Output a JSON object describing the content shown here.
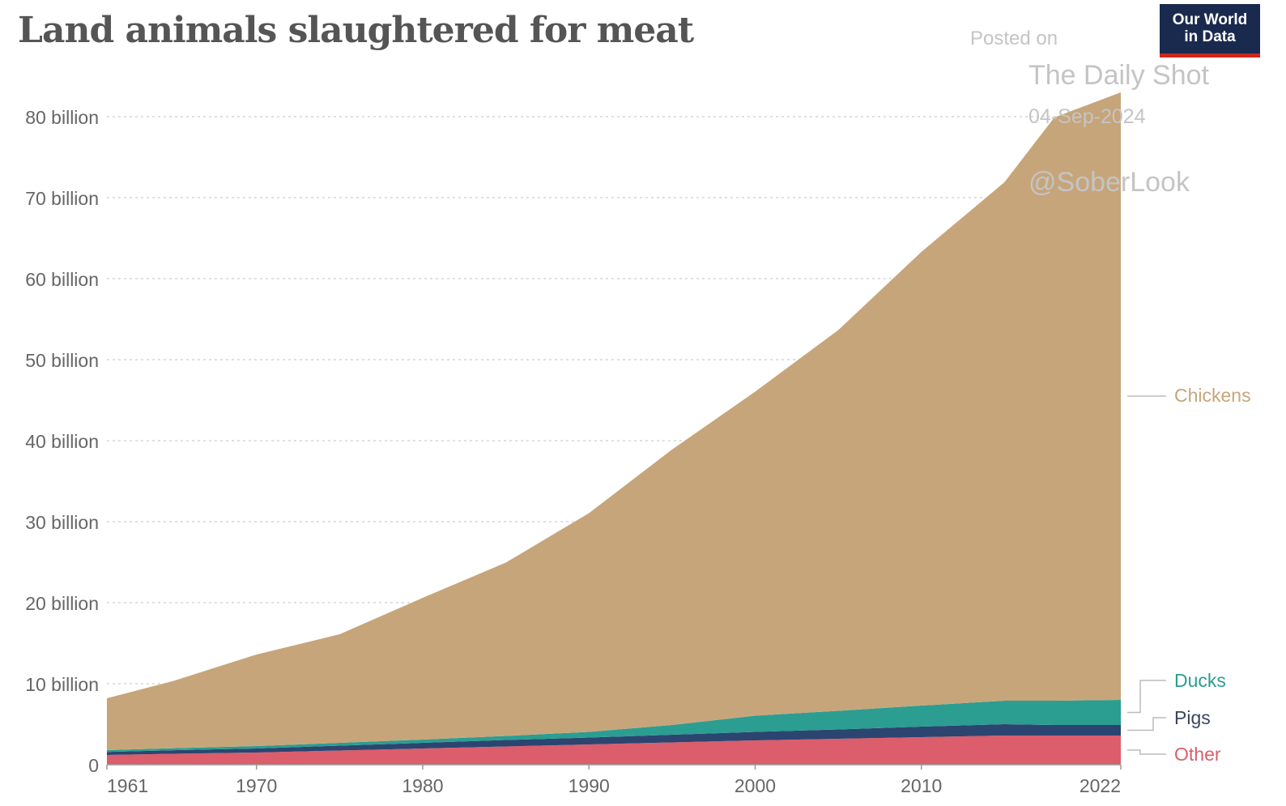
{
  "header": {
    "title": "Land animals slaughtered for meat",
    "logo_lines": [
      "Our World",
      "in Data"
    ]
  },
  "watermark": {
    "posted": "Posted on",
    "source": "The Daily Shot",
    "date": "04-Sep-2024",
    "handle": "@SoberLook"
  },
  "colors": {
    "chickens": "#c7a57a",
    "ducks": "#2c9d91",
    "pigs": "#2b4570",
    "other": "#dc5d6b",
    "grid": "#d6d6d6",
    "tick_text": "#666666",
    "logo_bg": "#1a2a4f",
    "logo_accent": "#ce261e"
  },
  "chart_data": {
    "type": "area",
    "stacked": true,
    "title": "Land animals slaughtered for meat",
    "xlabel": "",
    "ylabel": "",
    "xlim": [
      1961,
      2022
    ],
    "ylim": [
      0,
      80000000000
    ],
    "grid": true,
    "legend": "right",
    "x_ticks": [
      1961,
      1970,
      1980,
      1990,
      2000,
      2010,
      2022
    ],
    "y_ticks": [
      {
        "value": 0,
        "label": "0"
      },
      {
        "value": 10000000000,
        "label": "10 billion"
      },
      {
        "value": 20000000000,
        "label": "20 billion"
      },
      {
        "value": 30000000000,
        "label": "30 billion"
      },
      {
        "value": 40000000000,
        "label": "40 billion"
      },
      {
        "value": 50000000000,
        "label": "50 billion"
      },
      {
        "value": 60000000000,
        "label": "60 billion"
      },
      {
        "value": 70000000000,
        "label": "70 billion"
      },
      {
        "value": 80000000000,
        "label": "80 billion"
      }
    ],
    "x": [
      1961,
      1965,
      1970,
      1975,
      1980,
      1985,
      1990,
      1995,
      2000,
      2005,
      2010,
      2015,
      2018,
      2022
    ],
    "series": [
      {
        "name": "Other",
        "color_key": "other",
        "values": [
          1200000000.0,
          1350000000.0,
          1500000000.0,
          1750000000.0,
          2000000000.0,
          2250000000.0,
          2500000000.0,
          2750000000.0,
          3000000000.0,
          3200000000.0,
          3400000000.0,
          3600000000.0,
          3600000000.0,
          3600000000.0
        ]
      },
      {
        "name": "Pigs",
        "color_key": "pigs",
        "values": [
          380000000.0,
          440000000.0,
          500000000.0,
          600000000.0,
          700000000.0,
          800000000.0,
          850000000.0,
          950000000.0,
          1050000000.0,
          1150000000.0,
          1300000000.0,
          1400000000.0,
          1300000000.0,
          1300000000.0
        ]
      },
      {
        "name": "Ducks",
        "color_key": "ducks",
        "values": [
          220000000.0,
          250000000.0,
          300000000.0,
          350000000.0,
          400000000.0,
          500000000.0,
          700000000.0,
          1200000000.0,
          2000000000.0,
          2300000000.0,
          2600000000.0,
          2900000000.0,
          3000000000.0,
          3100000000.0
        ]
      },
      {
        "name": "Chickens",
        "color_key": "chickens",
        "values": [
          6400000000.0,
          8300000000.0,
          11300000000.0,
          13400000000.0,
          17500000000.0,
          21400000000.0,
          27000000000.0,
          34000000000.0,
          40000000000.0,
          47000000000.0,
          56000000000.0,
          64000000000.0,
          72000000000.0,
          75000000000.0
        ]
      }
    ]
  }
}
